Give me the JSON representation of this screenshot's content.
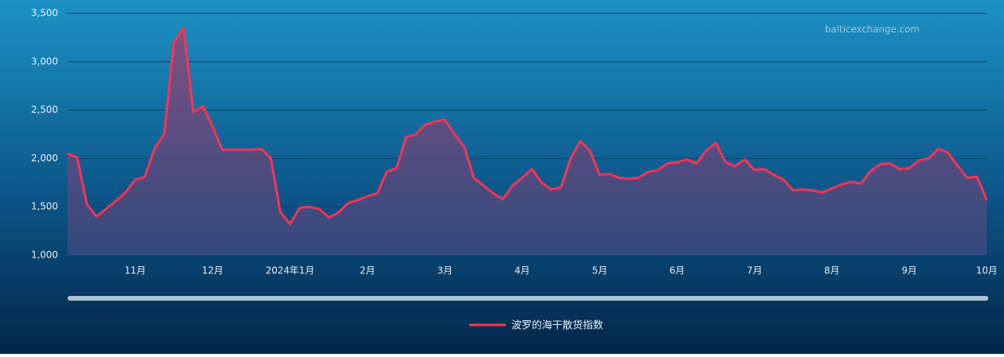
{
  "chart_data": {
    "type": "area",
    "source": "balticexchange.com",
    "categories": [
      null,
      null,
      null,
      null,
      null,
      null,
      null,
      "11月",
      null,
      null,
      null,
      null,
      null,
      null,
      null,
      "12月",
      null,
      null,
      null,
      null,
      null,
      null,
      null,
      "2024年1月",
      null,
      null,
      null,
      null,
      null,
      null,
      null,
      "2月",
      null,
      null,
      null,
      null,
      null,
      null,
      null,
      "3月",
      null,
      null,
      null,
      null,
      null,
      null,
      null,
      "4月",
      null,
      null,
      null,
      null,
      null,
      null,
      null,
      "5月",
      null,
      null,
      null,
      null,
      null,
      null,
      null,
      "6月",
      null,
      null,
      null,
      null,
      null,
      null,
      null,
      "7月",
      null,
      null,
      null,
      null,
      null,
      null,
      null,
      "8月",
      null,
      null,
      null,
      null,
      null,
      null,
      null,
      "9月",
      null,
      null,
      null,
      null,
      null,
      null,
      null,
      "10月"
    ],
    "series": [
      {
        "name": "波罗的海干散货指数",
        "color": "#ff3355",
        "values": [
          2050,
          2010,
          1530,
          1400,
          1480,
          1560,
          1650,
          1780,
          1810,
          2100,
          2250,
          3200,
          3350,
          2480,
          2540,
          2330,
          2090,
          2090,
          2090,
          2090,
          2100,
          2010,
          1450,
          1320,
          1490,
          1500,
          1480,
          1390,
          1440,
          1540,
          1570,
          1610,
          1640,
          1860,
          1900,
          2220,
          2250,
          2350,
          2380,
          2400,
          2250,
          2120,
          1800,
          1720,
          1640,
          1580,
          1720,
          1800,
          1890,
          1750,
          1680,
          1700,
          2000,
          2180,
          2080,
          1830,
          1840,
          1800,
          1790,
          1800,
          1860,
          1880,
          1950,
          1960,
          1990,
          1950,
          2080,
          2160,
          1960,
          1920,
          1990,
          1880,
          1890,
          1830,
          1780,
          1670,
          1680,
          1670,
          1650,
          1690,
          1730,
          1760,
          1740,
          1870,
          1940,
          1950,
          1890,
          1900,
          1980,
          2000,
          2100,
          2060,
          1920,
          1800,
          1810,
          1570
        ]
      }
    ],
    "ylim": [
      1000,
      3500
    ],
    "yticks": [
      {
        "value": 1000,
        "label": "1,000"
      },
      {
        "value": 1500,
        "label": "1,500"
      },
      {
        "value": 2000,
        "label": "2,000"
      },
      {
        "value": 2500,
        "label": "2,500"
      },
      {
        "value": 3000,
        "label": "3,000"
      },
      {
        "value": 3500,
        "label": "3,500"
      }
    ],
    "grid": true
  }
}
